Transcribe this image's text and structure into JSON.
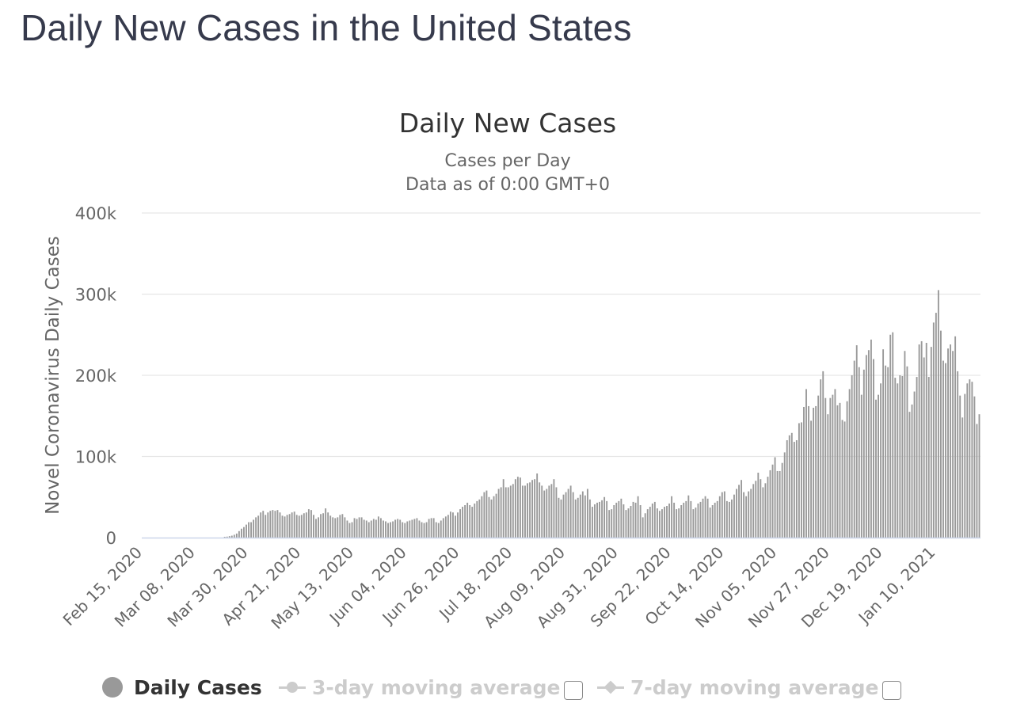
{
  "page": {
    "title": "Daily New Cases in the United States"
  },
  "chart_data": {
    "type": "bar",
    "title": "Daily New Cases",
    "subtitle_lines": [
      "Cases per Day",
      "Data as of 0:00 GMT+0"
    ],
    "ylabel": "Novel Coronavirus Daily Cases",
    "xlabel": "",
    "ylim": [
      0,
      400000
    ],
    "y_ticks": [
      0,
      100000,
      200000,
      300000,
      400000
    ],
    "y_tick_labels": [
      "0",
      "100k",
      "200k",
      "300k",
      "400k"
    ],
    "start_date": "Feb 15, 2020",
    "x_tick_labels": [
      "Feb 15, 2020",
      "Mar 08, 2020",
      "Mar 30, 2020",
      "Apr 21, 2020",
      "May 13, 2020",
      "Jun 04, 2020",
      "Jun 26, 2020",
      "Jul 18, 2020",
      "Aug 09, 2020",
      "Aug 31, 2020",
      "Sep 22, 2020",
      "Oct 14, 2020",
      "Nov 05, 2020",
      "Nov 27, 2020",
      "Dec 19, 2020",
      "Jan 10, 2021"
    ],
    "x_tick_interval_days": 22,
    "grid": true,
    "bar_color": "#999999",
    "values": [
      0,
      0,
      0,
      0,
      0,
      0,
      0,
      0,
      0,
      0,
      0,
      0,
      0,
      0,
      0,
      0,
      0,
      0,
      0,
      0,
      0,
      0,
      0,
      0,
      0,
      0,
      0,
      0,
      0,
      0,
      0,
      0,
      0,
      0,
      1000,
      1200,
      1800,
      2400,
      3500,
      5000,
      8000,
      11000,
      13000,
      16000,
      19000,
      19000,
      22000,
      25000,
      27000,
      31000,
      33000,
      28000,
      31000,
      33000,
      34000,
      33000,
      34000,
      31000,
      27000,
      26000,
      28000,
      29000,
      31000,
      32000,
      28000,
      27000,
      28000,
      30000,
      31000,
      35000,
      34000,
      28000,
      23000,
      25000,
      29000,
      30000,
      36000,
      31000,
      27000,
      25000,
      24000,
      25000,
      28000,
      29000,
      25000,
      21000,
      18000,
      19000,
      24000,
      23000,
      25000,
      25000,
      22000,
      21000,
      19000,
      21000,
      23000,
      22000,
      26000,
      24000,
      21000,
      20000,
      18000,
      19000,
      20000,
      22000,
      23000,
      22000,
      19000,
      18000,
      20000,
      21000,
      22000,
      23000,
      24000,
      21000,
      19000,
      18000,
      19000,
      23000,
      24000,
      24000,
      19000,
      18000,
      21000,
      24000,
      26000,
      28000,
      32000,
      31000,
      27000,
      31000,
      35000,
      38000,
      40000,
      43000,
      40000,
      38000,
      42000,
      45000,
      47000,
      51000,
      56000,
      58000,
      50000,
      47000,
      51000,
      54000,
      60000,
      62000,
      72000,
      62000,
      62000,
      64000,
      66000,
      72000,
      75000,
      74000,
      64000,
      64000,
      67000,
      68000,
      71000,
      72000,
      79000,
      68000,
      64000,
      58000,
      60000,
      64000,
      66000,
      72000,
      62000,
      49000,
      47000,
      53000,
      56000,
      60000,
      64000,
      56000,
      47000,
      49000,
      53000,
      57000,
      52000,
      60000,
      47000,
      38000,
      41000,
      43000,
      44000,
      46000,
      50000,
      45000,
      34000,
      35000,
      40000,
      43000,
      45000,
      48000,
      41000,
      34000,
      36000,
      39000,
      44000,
      43000,
      51000,
      40000,
      25000,
      30000,
      35000,
      38000,
      42000,
      44000,
      36000,
      33000,
      35000,
      38000,
      39000,
      42000,
      51000,
      43000,
      35000,
      36000,
      40000,
      43000,
      45000,
      52000,
      45000,
      35000,
      37000,
      42000,
      44000,
      48000,
      51000,
      48000,
      37000,
      40000,
      43000,
      45000,
      51000,
      56000,
      57000,
      45000,
      44000,
      47000,
      53000,
      60000,
      65000,
      71000,
      56000,
      51000,
      57000,
      60000,
      66000,
      70000,
      80000,
      72000,
      62000,
      67000,
      75000,
      83000,
      90000,
      99000,
      82000,
      82000,
      92000,
      105000,
      120000,
      126000,
      129000,
      118000,
      120000,
      141000,
      142000,
      161000,
      183000,
      162000,
      144000,
      160000,
      162000,
      175000,
      195000,
      205000,
      172000,
      152000,
      172000,
      176000,
      183000,
      163000,
      166000,
      145000,
      143000,
      168000,
      183000,
      200000,
      218000,
      237000,
      210000,
      176000,
      207000,
      225000,
      231000,
      244000,
      220000,
      170000,
      176000,
      190000,
      232000,
      212000,
      210000,
      250000,
      253000,
      197000,
      190000,
      200000,
      199000,
      230000,
      211000,
      155000,
      164000,
      180000,
      198000,
      238000,
      242000,
      222000,
      240000,
      198000,
      235000,
      265000,
      277000,
      305000,
      255000,
      218000,
      215000,
      233000,
      238000,
      230000,
      248000,
      205000,
      175000,
      148000,
      177000,
      190000,
      195000,
      192000,
      174000,
      140000,
      152000
    ]
  },
  "legend": {
    "items": [
      {
        "label": "Daily Cases",
        "active": true
      },
      {
        "label": "3-day moving average",
        "active": false
      },
      {
        "label": "7-day moving average",
        "active": false
      }
    ]
  },
  "colors": {
    "grid": "#e6e6e6",
    "axis": "#ccd6eb",
    "text": "#333333",
    "muted": "#666666",
    "bar": "#999999",
    "inactive": "#cccccc"
  }
}
